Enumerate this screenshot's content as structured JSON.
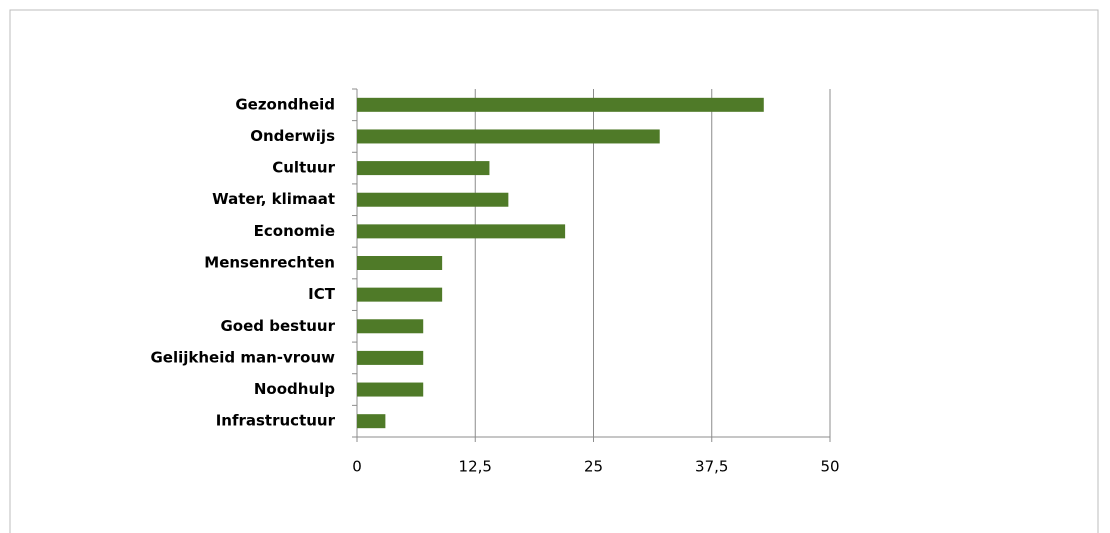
{
  "chart_data": {
    "type": "bar",
    "categories": [
      "Gezondheid",
      "Onderwijs",
      "Cultuur",
      "Water, klimaat",
      "Economie",
      "Mensenrechten",
      "ICT",
      "Goed bestuur",
      "Gelijkheid man-vrouw",
      "Noodhulp",
      "Infrastructuur"
    ],
    "values": [
      43,
      32,
      14,
      16,
      22,
      9,
      9,
      7,
      7,
      7,
      3
    ],
    "color": "#4f7a28",
    "xlim": [
      0,
      50
    ],
    "xticks": [
      0,
      {
        "value": 12.5,
        "label": "12,5"
      },
      25,
      {
        "value": 37.5,
        "label": "37,5"
      },
      50
    ],
    "grid": true
  }
}
